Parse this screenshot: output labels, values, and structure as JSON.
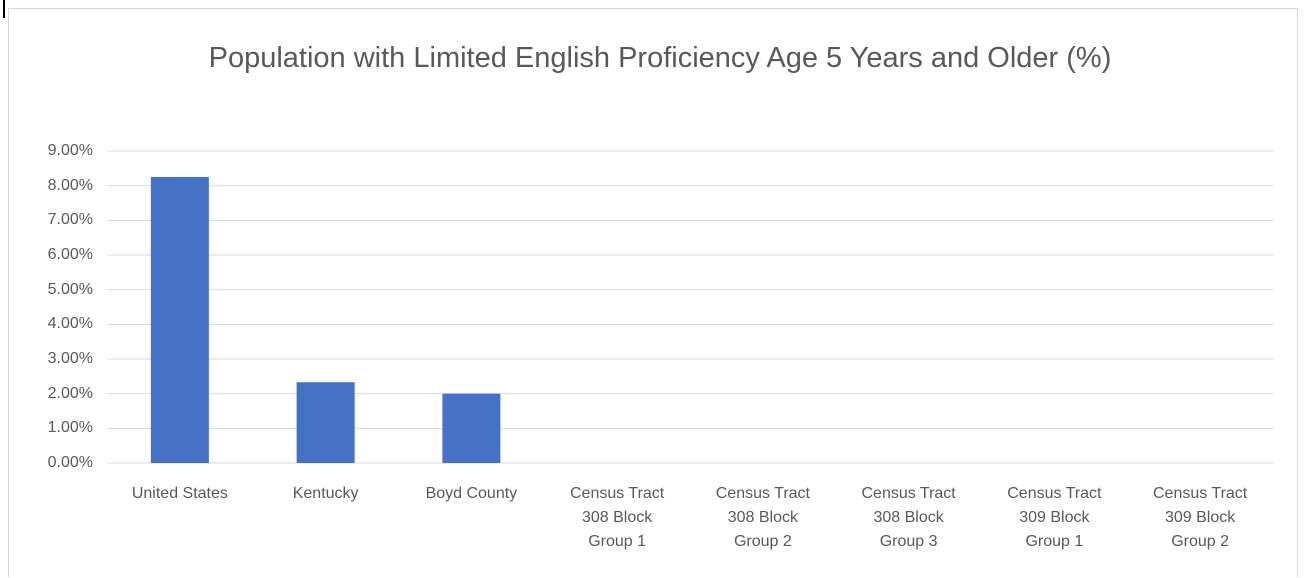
{
  "chart_data": {
    "type": "bar",
    "title": "Population with Limited English Proficiency Age 5 Years and Older (%)",
    "categories": [
      "United States",
      "Kentucky",
      "Boyd County",
      "Census Tract 308 Block Group 1",
      "Census Tract 308 Block Group 2",
      "Census Tract 308 Block Group 3",
      "Census Tract 309 Block Group 1",
      "Census Tract 309 Block Group 2"
    ],
    "values": [
      8.25,
      2.33,
      2.0,
      0,
      0,
      0,
      0,
      0
    ],
    "color": "#4472c4",
    "ylim": [
      0,
      9
    ],
    "yticks": [
      {
        "value": 0,
        "label": "0.00%"
      },
      {
        "value": 1,
        "label": "1.00%"
      },
      {
        "value": 2,
        "label": "2.00%"
      },
      {
        "value": 3,
        "label": "3.00%"
      },
      {
        "value": 4,
        "label": "4.00%"
      },
      {
        "value": 5,
        "label": "5.00%"
      },
      {
        "value": 6,
        "label": "6.00%"
      },
      {
        "value": 7,
        "label": "7.00%"
      },
      {
        "value": 8,
        "label": "8.00%"
      },
      {
        "value": 9,
        "label": "9.00%"
      }
    ],
    "grid": true
  }
}
